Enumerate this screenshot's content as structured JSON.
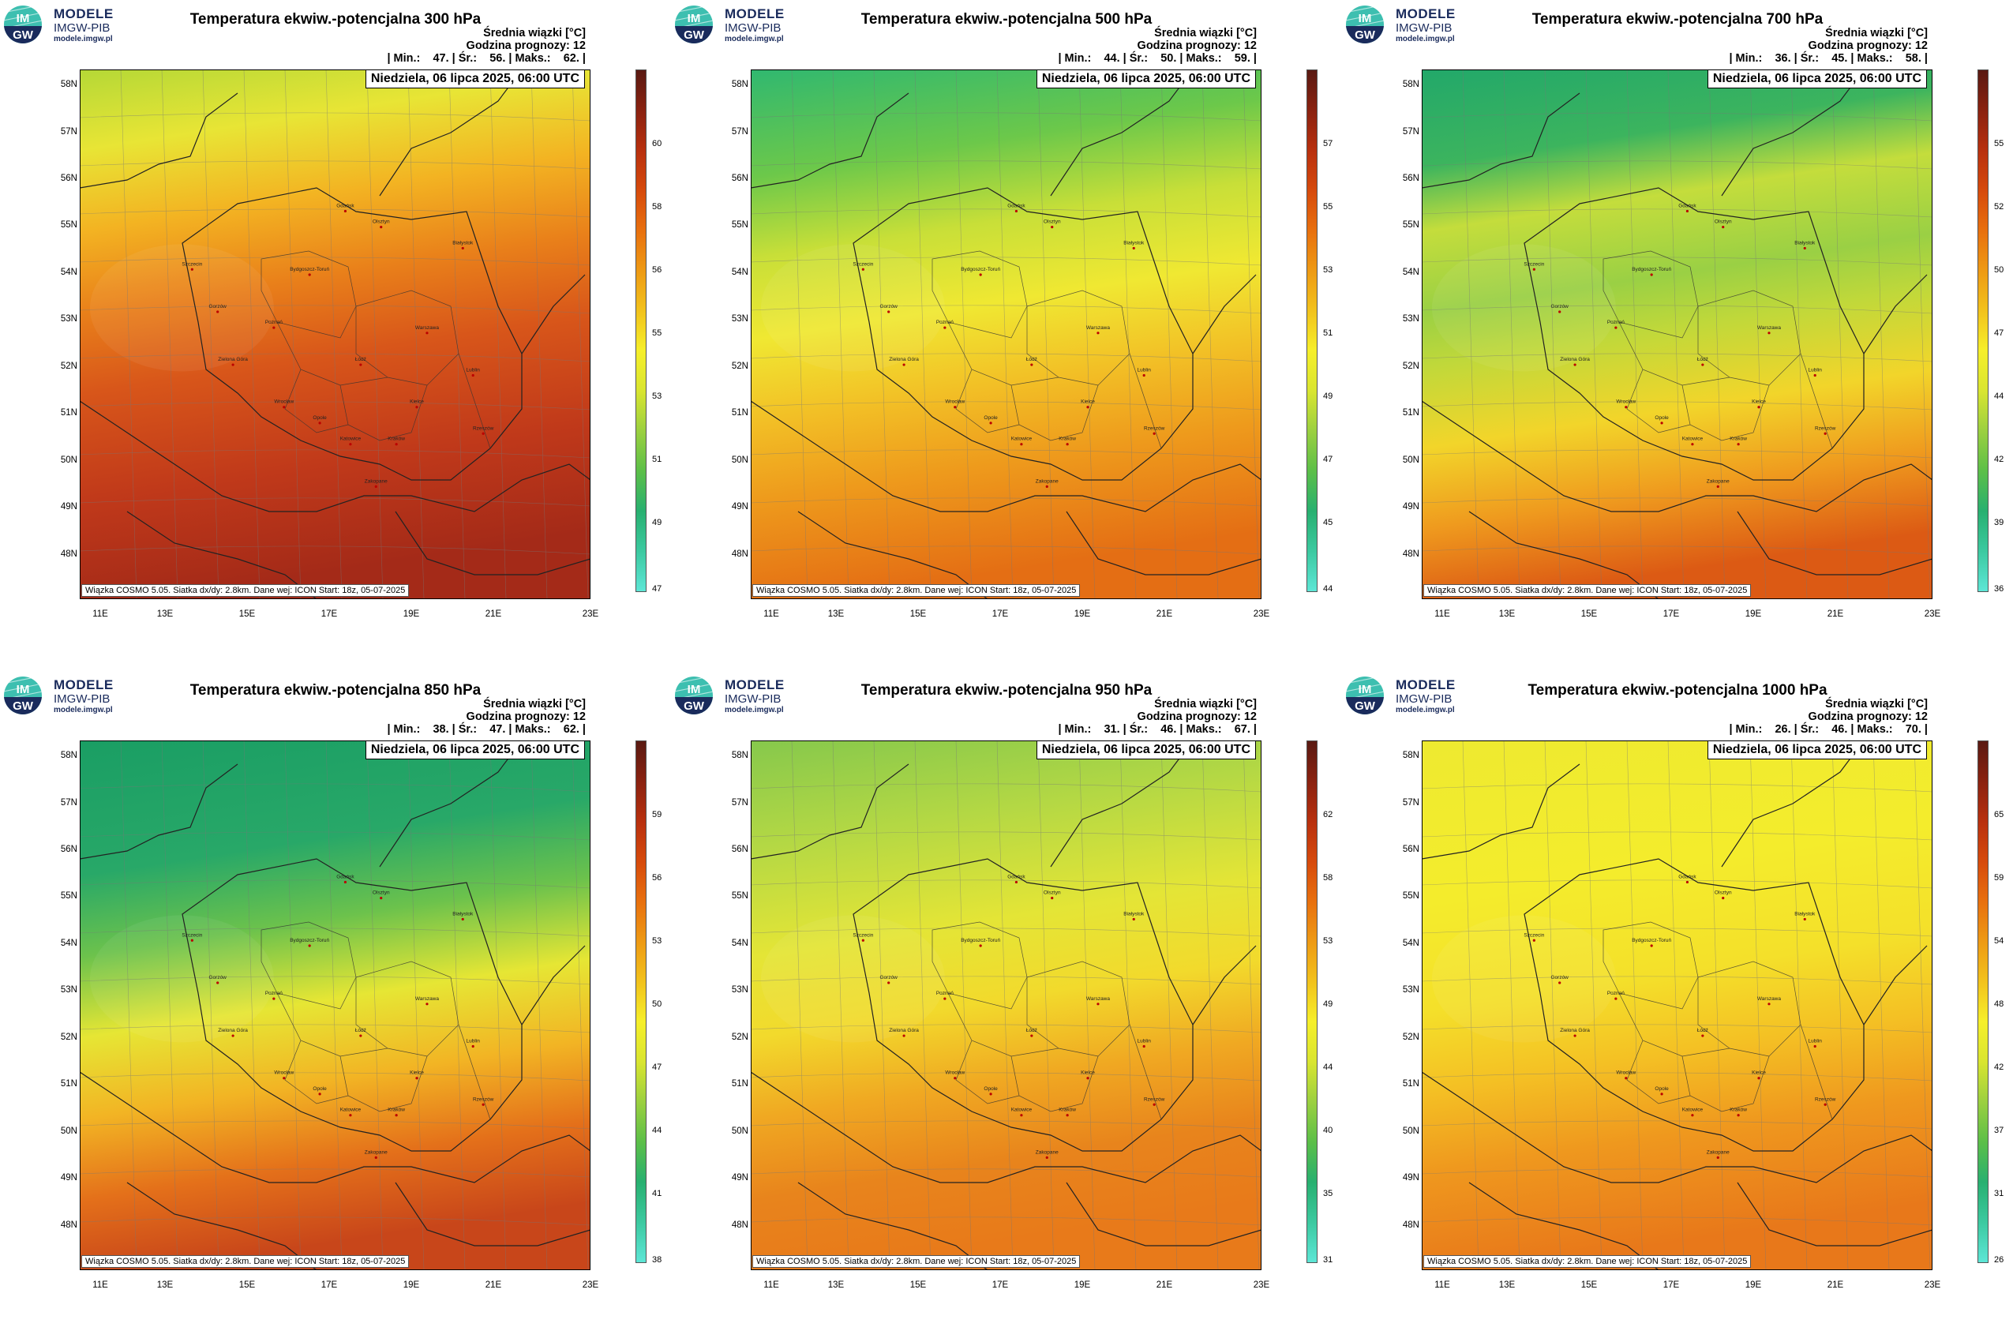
{
  "logo": {
    "line1": "MODELE",
    "line2": "IMGW-PIB",
    "line3": "modele.imgw.pl",
    "badge_top": "IM",
    "badge_bottom": "GW"
  },
  "common": {
    "info_label": "Średnia wiązki [°C]",
    "forecast_hour": "Godzina prognozy: 12",
    "date": "Niedziela, 06 lipca 2025, 06:00 UTC",
    "footer": "Wiązka COSMO 5.05. Siatka dx/dy: 2.8km. Dane wej: ICON Start: 18z, 05-07-2025",
    "lat_labels": [
      "58N",
      "57N",
      "56N",
      "55N",
      "54N",
      "53N",
      "52N",
      "51N",
      "50N",
      "49N",
      "48N"
    ],
    "lon_labels": [
      "11E",
      "13E",
      "15E",
      "17E",
      "19E",
      "21E",
      "23E"
    ]
  },
  "cities": [
    "Gdańsk",
    "Olsztyn",
    "Szczecin",
    "Białystok",
    "Bydgoszcz-Toruń",
    "Gorzów",
    "Poznań",
    "Warszawa",
    "Zielona Góra",
    "Łódź",
    "Lublin",
    "Wrocław",
    "Kielce",
    "Opole",
    "Katowice",
    "Kraków",
    "Rzeszów",
    "Zakopane"
  ],
  "panels": [
    {
      "title": "Temperatura ekwiw.-potencjalna 300 hPa",
      "stats": "| Min.:    47. | Śr.:    56. | Maks.:    62. |",
      "ticks": [
        "60",
        "58",
        "56",
        "55",
        "53",
        "51",
        "49",
        "47"
      ],
      "scheme": "p300"
    },
    {
      "title": "Temperatura ekwiw.-potencjalna 500 hPa",
      "stats": "| Min.:    44. | Śr.:    50. | Maks.:    59. |",
      "ticks": [
        "57",
        "55",
        "53",
        "51",
        "49",
        "47",
        "45",
        "44"
      ],
      "scheme": "p500"
    },
    {
      "title": "Temperatura ekwiw.-potencjalna 700 hPa",
      "stats": "| Min.:    36. | Śr.:    45. | Maks.:    58. |",
      "ticks": [
        "55",
        "52",
        "50",
        "47",
        "44",
        "42",
        "39",
        "36"
      ],
      "scheme": "p700"
    },
    {
      "title": "Temperatura ekwiw.-potencjalna 850 hPa",
      "stats": "| Min.:    38. | Śr.:    47. | Maks.:    62. |",
      "ticks": [
        "59",
        "56",
        "53",
        "50",
        "47",
        "44",
        "41",
        "38"
      ],
      "scheme": "p850"
    },
    {
      "title": "Temperatura ekwiw.-potencjalna 950 hPa",
      "stats": "| Min.:    31. | Śr.:    46. | Maks.:    67. |",
      "ticks": [
        "62",
        "58",
        "53",
        "49",
        "44",
        "40",
        "35",
        "31"
      ],
      "scheme": "p950"
    },
    {
      "title": "Temperatura ekwiw.-potencjalna 1000 hPa",
      "stats": "| Min.:    26. | Śr.:    46. | Maks.:    70. |",
      "ticks": [
        "65",
        "59",
        "54",
        "48",
        "42",
        "37",
        "31",
        "26"
      ],
      "scheme": "p1000"
    }
  ],
  "colors": {
    "colorbar": [
      "#5de6d6",
      "#3cc9a0",
      "#28b070",
      "#5cbf48",
      "#9bd040",
      "#d9e530",
      "#f6ef2a",
      "#f2c21c",
      "#ee9a14",
      "#e8700e",
      "#d64a0c",
      "#b8300e",
      "#8a2210",
      "#5a1a12"
    ]
  }
}
